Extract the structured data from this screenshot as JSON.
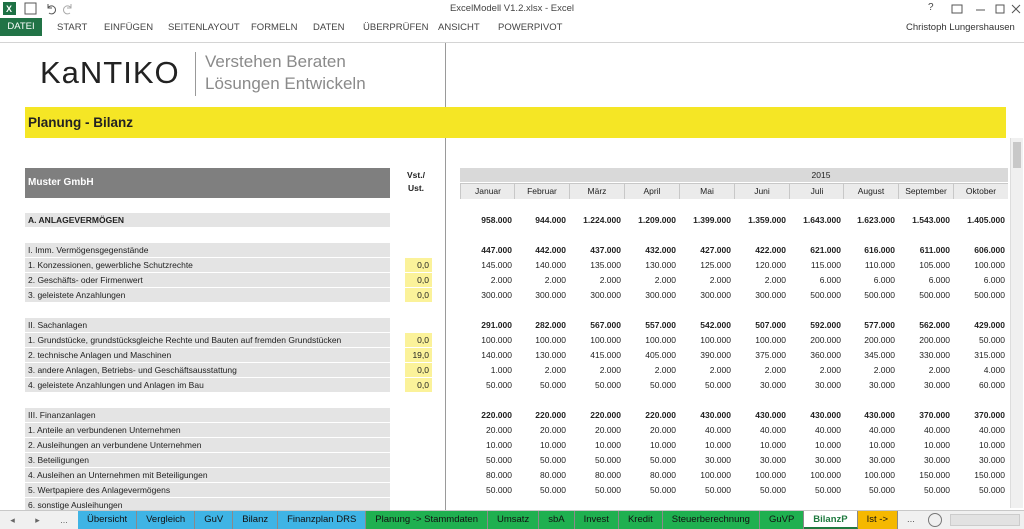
{
  "window": {
    "title": "ExcelModell V1.2.xlsx - Excel",
    "help": "?",
    "user": "Christoph Lungershausen"
  },
  "ribbon_tabs": [
    "DATEI",
    "START",
    "EINFÜGEN",
    "SEITENLAYOUT",
    "FORMELN",
    "DATEN",
    "ÜBERPRÜFEN",
    "ANSICHT",
    "POWERPIVOT"
  ],
  "logo": {
    "brand": "KaNTIKO",
    "tagline": [
      "Verstehen Beraten",
      "Lösungen Entwickeln"
    ]
  },
  "sheet": {
    "title": "Planung - Bilanz",
    "company": "Muster GmbH",
    "vst_header": [
      "Vst./",
      "Ust."
    ],
    "year": "2015",
    "months": [
      "Januar",
      "Februar",
      "März",
      "April",
      "Mai",
      "Juni",
      "Juli",
      "August",
      "September",
      "Oktober"
    ],
    "sections": [
      {
        "rows": [
          {
            "label": "A. ANLAGEVERMÖGEN",
            "values": [
              "958.000",
              "944.000",
              "1.224.000",
              "1.209.000",
              "1.399.000",
              "1.359.000",
              "1.643.000",
              "1.623.000",
              "1.543.000",
              "1.405.000"
            ]
          }
        ]
      },
      {
        "rows": [
          {
            "label": "I. Imm. Vermögensgegenstände",
            "values": [
              "447.000",
              "442.000",
              "437.000",
              "432.000",
              "427.000",
              "422.000",
              "621.000",
              "616.000",
              "611.000",
              "606.000"
            ]
          },
          {
            "label": "1. Konzessionen, gewerbliche Schutzrechte",
            "vst": "0,0",
            "values": [
              "145.000",
              "140.000",
              "135.000",
              "130.000",
              "125.000",
              "120.000",
              "115.000",
              "110.000",
              "105.000",
              "100.000"
            ]
          },
          {
            "label": "2. Geschäfts- oder Firmenwert",
            "vst": "0,0",
            "values": [
              "2.000",
              "2.000",
              "2.000",
              "2.000",
              "2.000",
              "2.000",
              "6.000",
              "6.000",
              "6.000",
              "6.000"
            ]
          },
          {
            "label": "3. geleistete Anzahlungen",
            "vst": "0,0",
            "values": [
              "300.000",
              "300.000",
              "300.000",
              "300.000",
              "300.000",
              "300.000",
              "500.000",
              "500.000",
              "500.000",
              "500.000"
            ]
          }
        ]
      },
      {
        "rows": [
          {
            "label": "II. Sachanlagen",
            "values": [
              "291.000",
              "282.000",
              "567.000",
              "557.000",
              "542.000",
              "507.000",
              "592.000",
              "577.000",
              "562.000",
              "429.000"
            ]
          },
          {
            "label": "1. Grundstücke, grundstücksgleiche Rechte und Bauten auf fremden Grundstücken",
            "vst": "0,0",
            "values": [
              "100.000",
              "100.000",
              "100.000",
              "100.000",
              "100.000",
              "100.000",
              "200.000",
              "200.000",
              "200.000",
              "50.000"
            ]
          },
          {
            "label": "2. technische Anlagen und Maschinen",
            "vst": "19,0",
            "values": [
              "140.000",
              "130.000",
              "415.000",
              "405.000",
              "390.000",
              "375.000",
              "360.000",
              "345.000",
              "330.000",
              "315.000"
            ]
          },
          {
            "label": "3. andere Anlagen, Betriebs- und Geschäftsausstattung",
            "vst": "0,0",
            "values": [
              "1.000",
              "2.000",
              "2.000",
              "2.000",
              "2.000",
              "2.000",
              "2.000",
              "2.000",
              "2.000",
              "4.000"
            ]
          },
          {
            "label": "4. geleistete Anzahlungen und Anlagen im Bau",
            "vst": "0,0",
            "values": [
              "50.000",
              "50.000",
              "50.000",
              "50.000",
              "50.000",
              "30.000",
              "30.000",
              "30.000",
              "30.000",
              "60.000"
            ]
          }
        ]
      },
      {
        "rows": [
          {
            "label": "III. Finanzanlagen",
            "values": [
              "220.000",
              "220.000",
              "220.000",
              "220.000",
              "430.000",
              "430.000",
              "430.000",
              "430.000",
              "370.000",
              "370.000"
            ]
          },
          {
            "label": "1. Anteile an verbundenen Unternehmen",
            "values": [
              "20.000",
              "20.000",
              "20.000",
              "20.000",
              "40.000",
              "40.000",
              "40.000",
              "40.000",
              "40.000",
              "40.000"
            ]
          },
          {
            "label": "2. Ausleihungen an verbundene Unternehmen",
            "values": [
              "10.000",
              "10.000",
              "10.000",
              "10.000",
              "10.000",
              "10.000",
              "10.000",
              "10.000",
              "10.000",
              "10.000"
            ]
          },
          {
            "label": "3. Beteiligungen",
            "values": [
              "50.000",
              "50.000",
              "50.000",
              "50.000",
              "30.000",
              "30.000",
              "30.000",
              "30.000",
              "30.000",
              "30.000"
            ]
          },
          {
            "label": "4. Ausleihen an Unternehmen mit Beteiligungen",
            "values": [
              "80.000",
              "80.000",
              "80.000",
              "80.000",
              "100.000",
              "100.000",
              "100.000",
              "100.000",
              "150.000",
              "150.000"
            ]
          },
          {
            "label": "5. Wertpapiere des Anlagevermögens",
            "values": [
              "50.000",
              "50.000",
              "50.000",
              "50.000",
              "50.000",
              "50.000",
              "50.000",
              "50.000",
              "50.000",
              "50.000"
            ]
          },
          {
            "label": "6. sonstige Ausleihungen"
          }
        ]
      }
    ]
  },
  "sheet_tabs": {
    "overflow": "...",
    "tabs": [
      {
        "label": "Übersicht",
        "color": "#3fb4e5"
      },
      {
        "label": "Vergleich",
        "color": "#3fb4e5"
      },
      {
        "label": "GuV",
        "color": "#3fb4e5"
      },
      {
        "label": "Bilanz",
        "color": "#3fb4e5"
      },
      {
        "label": "Finanzplan DRS",
        "color": "#3fb4e5"
      },
      {
        "label": "Planung -> Stammdaten",
        "color": "#1fb050"
      },
      {
        "label": "Umsatz",
        "color": "#1fb050"
      },
      {
        "label": "sbA",
        "color": "#1fb050"
      },
      {
        "label": "Invest",
        "color": "#1fb050"
      },
      {
        "label": "Kredit",
        "color": "#1fb050"
      },
      {
        "label": "Steuerberechnung",
        "color": "#1fb050"
      },
      {
        "label": "GuVP",
        "color": "#1fb050"
      },
      {
        "label": "BilanzP",
        "color": "#ffffff",
        "active": true
      },
      {
        "label": "Ist ->",
        "color": "#f5b800"
      }
    ]
  }
}
